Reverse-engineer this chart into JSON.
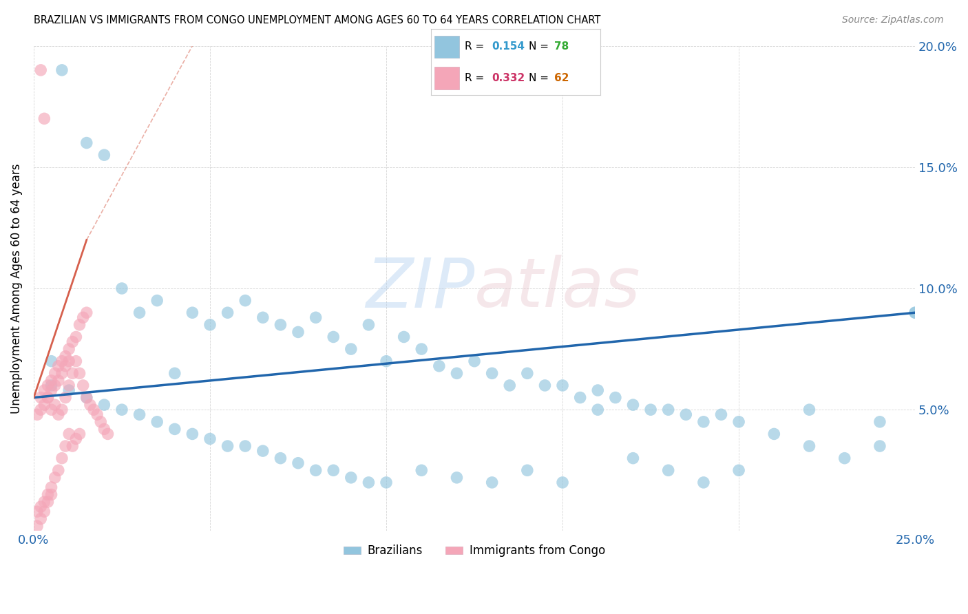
{
  "title": "BRAZILIAN VS IMMIGRANTS FROM CONGO UNEMPLOYMENT AMONG AGES 60 TO 64 YEARS CORRELATION CHART",
  "source": "Source: ZipAtlas.com",
  "ylabel": "Unemployment Among Ages 60 to 64 years",
  "xlim": [
    0,
    0.25
  ],
  "ylim": [
    0,
    0.2
  ],
  "legend_r_blue": "0.154",
  "legend_n_blue": "78",
  "legend_r_pink": "0.332",
  "legend_n_pink": "62",
  "legend_label_blue": "Brazilians",
  "legend_label_pink": "Immigrants from Congo",
  "blue_color": "#92c5de",
  "pink_color": "#f4a6b8",
  "blue_line_color": "#2166ac",
  "pink_line_color": "#d6604d",
  "text_blue": "#2166ac",
  "text_pink": "#d6604d",
  "blue_r_color": "#3399cc",
  "blue_n_color": "#33aa33",
  "pink_r_color": "#cc3366",
  "pink_n_color": "#cc6600",
  "blue_scatter_x": [
    0.008,
    0.015,
    0.02,
    0.025,
    0.03,
    0.035,
    0.04,
    0.045,
    0.05,
    0.055,
    0.06,
    0.065,
    0.07,
    0.075,
    0.08,
    0.085,
    0.09,
    0.095,
    0.1,
    0.105,
    0.11,
    0.115,
    0.12,
    0.125,
    0.13,
    0.135,
    0.14,
    0.145,
    0.15,
    0.155,
    0.16,
    0.165,
    0.17,
    0.175,
    0.18,
    0.185,
    0.19,
    0.195,
    0.2,
    0.21,
    0.22,
    0.23,
    0.24,
    0.25,
    0.005,
    0.01,
    0.015,
    0.02,
    0.025,
    0.03,
    0.035,
    0.04,
    0.045,
    0.05,
    0.055,
    0.06,
    0.065,
    0.07,
    0.075,
    0.08,
    0.085,
    0.09,
    0.095,
    0.1,
    0.11,
    0.12,
    0.13,
    0.14,
    0.15,
    0.16,
    0.17,
    0.18,
    0.19,
    0.2,
    0.22,
    0.24,
    0.25,
    0.005
  ],
  "blue_scatter_y": [
    0.19,
    0.16,
    0.155,
    0.1,
    0.09,
    0.095,
    0.065,
    0.09,
    0.085,
    0.09,
    0.095,
    0.088,
    0.085,
    0.082,
    0.088,
    0.08,
    0.075,
    0.085,
    0.07,
    0.08,
    0.075,
    0.068,
    0.065,
    0.07,
    0.065,
    0.06,
    0.065,
    0.06,
    0.06,
    0.055,
    0.058,
    0.055,
    0.052,
    0.05,
    0.05,
    0.048,
    0.045,
    0.048,
    0.045,
    0.04,
    0.035,
    0.03,
    0.035,
    0.09,
    0.06,
    0.058,
    0.055,
    0.052,
    0.05,
    0.048,
    0.045,
    0.042,
    0.04,
    0.038,
    0.035,
    0.035,
    0.033,
    0.03,
    0.028,
    0.025,
    0.025,
    0.022,
    0.02,
    0.02,
    0.025,
    0.022,
    0.02,
    0.025,
    0.02,
    0.05,
    0.03,
    0.025,
    0.02,
    0.025,
    0.05,
    0.045,
    0.09,
    0.07
  ],
  "pink_scatter_x": [
    0.002,
    0.003,
    0.004,
    0.005,
    0.006,
    0.007,
    0.008,
    0.009,
    0.01,
    0.011,
    0.012,
    0.013,
    0.014,
    0.015,
    0.016,
    0.017,
    0.018,
    0.019,
    0.02,
    0.021,
    0.002,
    0.003,
    0.004,
    0.005,
    0.006,
    0.007,
    0.008,
    0.009,
    0.01,
    0.011,
    0.012,
    0.013,
    0.014,
    0.015,
    0.001,
    0.002,
    0.003,
    0.004,
    0.005,
    0.006,
    0.007,
    0.008,
    0.009,
    0.01,
    0.011,
    0.012,
    0.013,
    0.001,
    0.002,
    0.003,
    0.004,
    0.005,
    0.006,
    0.007,
    0.008,
    0.009,
    0.01,
    0.001,
    0.002,
    0.003,
    0.004,
    0.005
  ],
  "pink_scatter_y": [
    0.19,
    0.17,
    0.055,
    0.05,
    0.052,
    0.048,
    0.05,
    0.055,
    0.06,
    0.065,
    0.07,
    0.065,
    0.06,
    0.055,
    0.052,
    0.05,
    0.048,
    0.045,
    0.042,
    0.04,
    0.055,
    0.058,
    0.06,
    0.062,
    0.065,
    0.068,
    0.07,
    0.072,
    0.075,
    0.078,
    0.08,
    0.085,
    0.088,
    0.09,
    0.048,
    0.05,
    0.052,
    0.055,
    0.058,
    0.06,
    0.062,
    0.065,
    0.068,
    0.07,
    0.035,
    0.038,
    0.04,
    0.008,
    0.01,
    0.012,
    0.015,
    0.018,
    0.022,
    0.025,
    0.03,
    0.035,
    0.04,
    0.002,
    0.005,
    0.008,
    0.012,
    0.015
  ],
  "blue_line_x": [
    0.0,
    0.25
  ],
  "blue_line_y": [
    0.055,
    0.09
  ],
  "pink_line_x": [
    0.0,
    0.025
  ],
  "pink_line_y": [
    0.055,
    0.13
  ]
}
